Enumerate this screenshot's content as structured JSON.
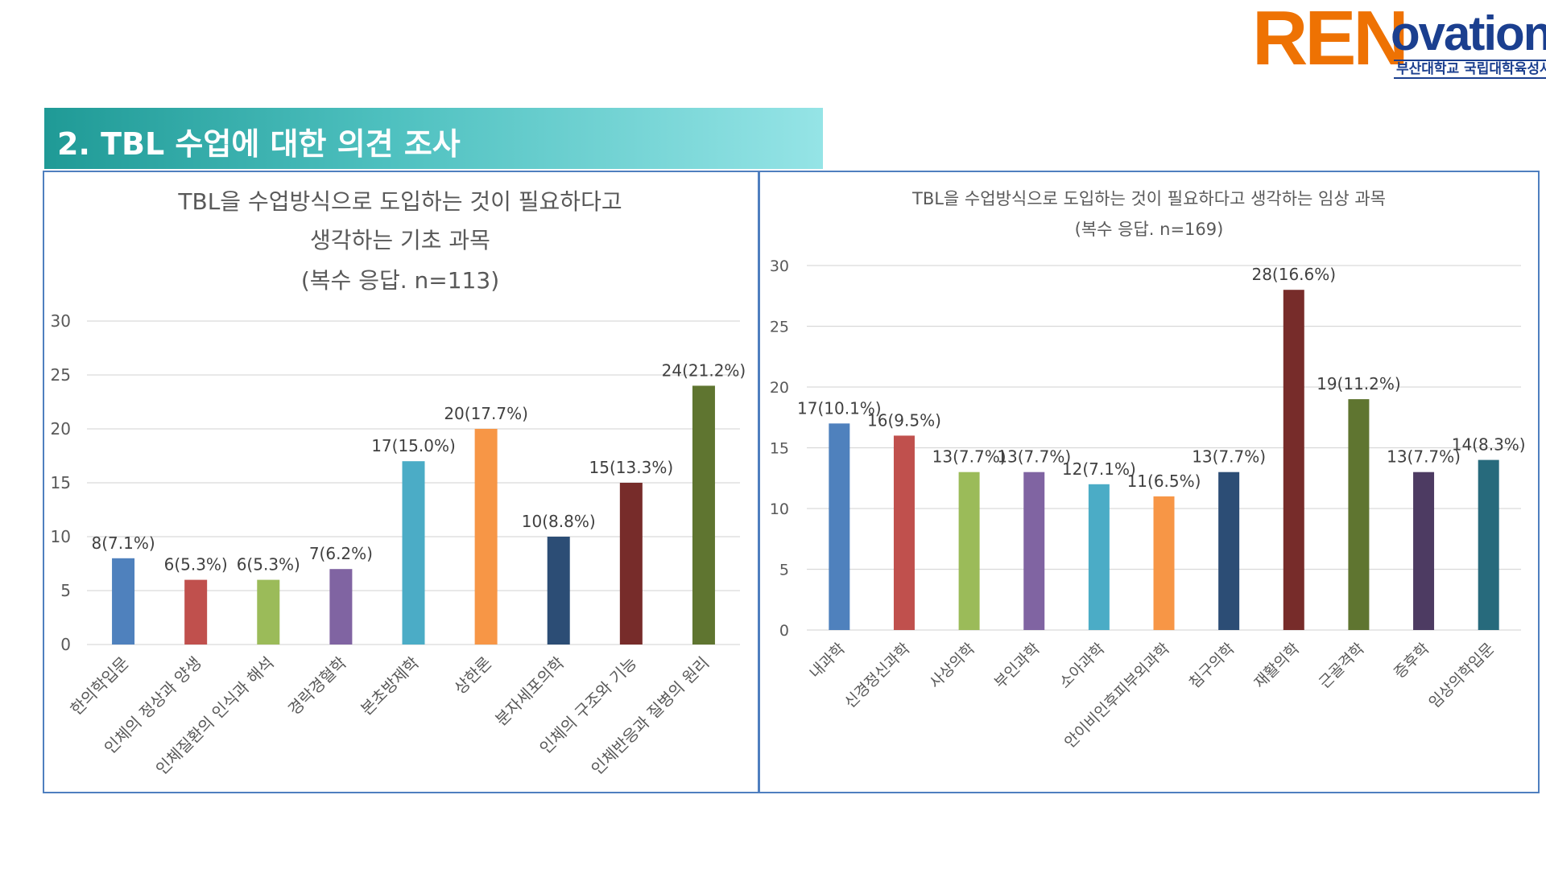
{
  "logo": {
    "text": "RENovation",
    "subtitle": "부산대학교 국립대학육성사업"
  },
  "header": {
    "title": "2. TBL 수업에 대한 의견 조사"
  },
  "chart_data": [
    {
      "type": "bar",
      "title_lines": [
        "TBL을 수업방식으로 도입하는 것이 필요하다고",
        "생각하는 기초 과목",
        "(복수 응답. n=113)"
      ],
      "categories": [
        "한의학입문",
        "인체의 정상과 양생",
        "인체질환의 인식과 해석",
        "경락경혈학",
        "본초방제학",
        "상한론",
        "분자세포의학",
        "인체의 구조와 기능",
        "인체반응과 질병의 원리"
      ],
      "values": [
        8,
        6,
        6,
        7,
        17,
        20,
        10,
        15,
        24
      ],
      "data_labels": [
        "8(7.1%)",
        "6(5.3%)",
        "6(5.3%)",
        "7(6.2%)",
        "17(15.0%)",
        "20(17.7%)",
        "10(8.8%)",
        "15(13.3%)",
        "24(21.2%)"
      ],
      "colors": [
        "#4F81BD",
        "#C0504D",
        "#9BBB59",
        "#8064A2",
        "#4BACC6",
        "#F79646",
        "#2C4D75",
        "#772C2A",
        "#5F7530"
      ],
      "ylim": [
        0,
        30
      ],
      "yticks": [
        0,
        5,
        10,
        15,
        20,
        25,
        30
      ],
      "grid": true
    },
    {
      "type": "bar",
      "title_lines": [
        "TBL을 수업방식으로 도입하는 것이 필요하다고 생각하는 임상 과목",
        "(복수 응답. n=169)"
      ],
      "categories": [
        "내과학",
        "신경정신과학",
        "사상의학",
        "부인과학",
        "소아과학",
        "안이비인후피부외과학",
        "침구의학",
        "재활의학",
        "근골격학",
        "증후학",
        "임상의학입문"
      ],
      "values": [
        17,
        16,
        13,
        13,
        12,
        11,
        13,
        28,
        19,
        13,
        14
      ],
      "data_labels": [
        "17(10.1%)",
        "16(9.5%)",
        "13(7.7%)",
        "13(7.7%)",
        "12(7.1%)",
        "11(6.5%)",
        "13(7.7%)",
        "28(16.6%)",
        "19(11.2%)",
        "13(7.7%)",
        "14(8.3%)"
      ],
      "colors": [
        "#4F81BD",
        "#C0504D",
        "#9BBB59",
        "#8064A2",
        "#4BACC6",
        "#F79646",
        "#2C4D75",
        "#772C2A",
        "#5F7530",
        "#4D3B62",
        "#276A7C"
      ],
      "ylim": [
        0,
        30
      ],
      "yticks": [
        0,
        5,
        10,
        15,
        20,
        25,
        30
      ],
      "grid": true
    }
  ]
}
